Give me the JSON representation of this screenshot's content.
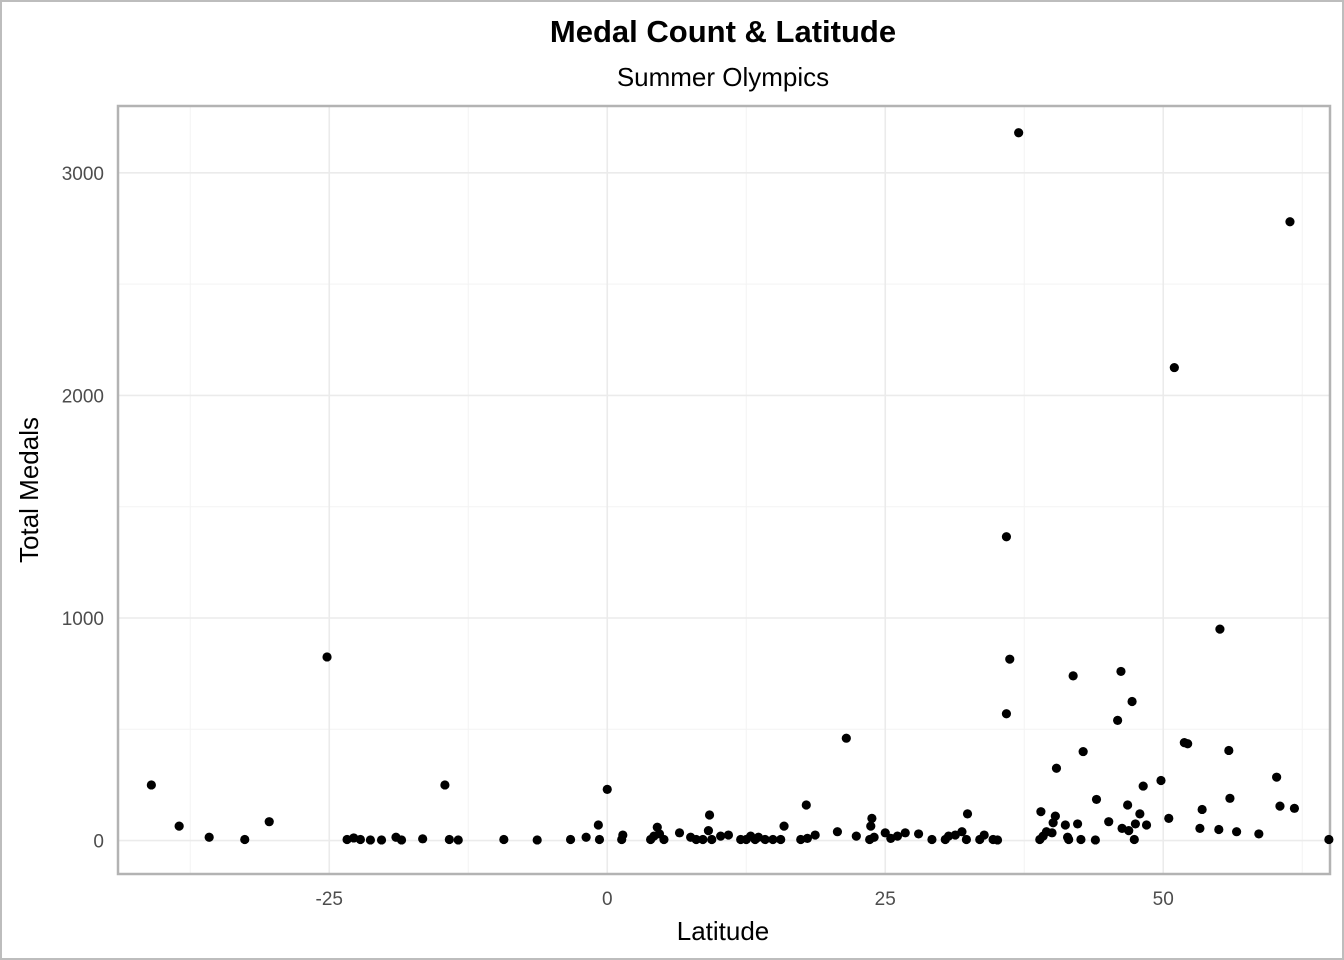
{
  "chart_data": {
    "type": "scatter",
    "title": "Medal Count & Latitude",
    "subtitle": "Summer Olympics",
    "xlabel": "Latitude",
    "ylabel": "Total Medals",
    "xlim": [
      -44,
      65
    ],
    "ylim": [
      -150,
      3300
    ],
    "x_ticks": [
      -25,
      0,
      25,
      50
    ],
    "x_tick_labels": [
      "-25",
      "0",
      "25",
      "50"
    ],
    "y_ticks": [
      0,
      1000,
      2000,
      3000
    ],
    "y_tick_labels": [
      "0",
      "1000",
      "2000",
      "3000"
    ],
    "grid": true,
    "marker_color": "#000000",
    "points": [
      {
        "x": -41,
        "y": 250
      },
      {
        "x": -38.5,
        "y": 65
      },
      {
        "x": -35.8,
        "y": 15
      },
      {
        "x": -32.6,
        "y": 5
      },
      {
        "x": -30.4,
        "y": 85
      },
      {
        "x": -25.2,
        "y": 825
      },
      {
        "x": -23.4,
        "y": 5
      },
      {
        "x": -22.8,
        "y": 12
      },
      {
        "x": -22.2,
        "y": 5
      },
      {
        "x": -21.3,
        "y": 3
      },
      {
        "x": -20.3,
        "y": 3
      },
      {
        "x": -19,
        "y": 15
      },
      {
        "x": -18.5,
        "y": 3
      },
      {
        "x": -16.6,
        "y": 8
      },
      {
        "x": -14.6,
        "y": 250
      },
      {
        "x": -14.2,
        "y": 5
      },
      {
        "x": -13.4,
        "y": 3
      },
      {
        "x": -9.3,
        "y": 5
      },
      {
        "x": -6.3,
        "y": 3
      },
      {
        "x": -3.3,
        "y": 5
      },
      {
        "x": -1.9,
        "y": 15
      },
      {
        "x": -0.8,
        "y": 70
      },
      {
        "x": -0.7,
        "y": 5
      },
      {
        "x": 0,
        "y": 230
      },
      {
        "x": 1.3,
        "y": 5
      },
      {
        "x": 1.4,
        "y": 25
      },
      {
        "x": 3.9,
        "y": 5
      },
      {
        "x": 4.2,
        "y": 20
      },
      {
        "x": 4.5,
        "y": 60
      },
      {
        "x": 4.7,
        "y": 30
      },
      {
        "x": 5.1,
        "y": 5
      },
      {
        "x": 6.5,
        "y": 35
      },
      {
        "x": 7.5,
        "y": 15
      },
      {
        "x": 8,
        "y": 5
      },
      {
        "x": 8.6,
        "y": 5
      },
      {
        "x": 9.1,
        "y": 45
      },
      {
        "x": 9.2,
        "y": 115
      },
      {
        "x": 9.4,
        "y": 5
      },
      {
        "x": 10.2,
        "y": 20
      },
      {
        "x": 10.9,
        "y": 25
      },
      {
        "x": 12,
        "y": 5
      },
      {
        "x": 12.5,
        "y": 5
      },
      {
        "x": 12.9,
        "y": 20
      },
      {
        "x": 13.3,
        "y": 5
      },
      {
        "x": 13.6,
        "y": 15
      },
      {
        "x": 14.2,
        "y": 5
      },
      {
        "x": 14.9,
        "y": 5
      },
      {
        "x": 15.6,
        "y": 5
      },
      {
        "x": 15.9,
        "y": 65
      },
      {
        "x": 17.4,
        "y": 5
      },
      {
        "x": 17.9,
        "y": 160
      },
      {
        "x": 18,
        "y": 10
      },
      {
        "x": 18.7,
        "y": 25
      },
      {
        "x": 20.7,
        "y": 40
      },
      {
        "x": 21.5,
        "y": 460
      },
      {
        "x": 22.4,
        "y": 20
      },
      {
        "x": 23.6,
        "y": 5
      },
      {
        "x": 23.7,
        "y": 65
      },
      {
        "x": 23.8,
        "y": 100
      },
      {
        "x": 24,
        "y": 15
      },
      {
        "x": 25,
        "y": 35
      },
      {
        "x": 25.5,
        "y": 10
      },
      {
        "x": 26.1,
        "y": 20
      },
      {
        "x": 26.8,
        "y": 35
      },
      {
        "x": 28,
        "y": 30
      },
      {
        "x": 29.2,
        "y": 5
      },
      {
        "x": 30.4,
        "y": 5
      },
      {
        "x": 30.7,
        "y": 20
      },
      {
        "x": 31.3,
        "y": 25
      },
      {
        "x": 31.9,
        "y": 40
      },
      {
        "x": 32.3,
        "y": 5
      },
      {
        "x": 32.4,
        "y": 120
      },
      {
        "x": 33.5,
        "y": 5
      },
      {
        "x": 33.9,
        "y": 25
      },
      {
        "x": 34.7,
        "y": 5
      },
      {
        "x": 35.1,
        "y": 3
      },
      {
        "x": 35.9,
        "y": 1365
      },
      {
        "x": 35.9,
        "y": 570
      },
      {
        "x": 36.2,
        "y": 815
      },
      {
        "x": 37,
        "y": 3180
      },
      {
        "x": 38.9,
        "y": 5
      },
      {
        "x": 39,
        "y": 130
      },
      {
        "x": 39.2,
        "y": 20
      },
      {
        "x": 39.5,
        "y": 40
      },
      {
        "x": 40,
        "y": 35
      },
      {
        "x": 40.1,
        "y": 80
      },
      {
        "x": 40.3,
        "y": 110
      },
      {
        "x": 40.4,
        "y": 325
      },
      {
        "x": 41.2,
        "y": 70
      },
      {
        "x": 41.4,
        "y": 15
      },
      {
        "x": 41.5,
        "y": 5
      },
      {
        "x": 41.9,
        "y": 740
      },
      {
        "x": 42.3,
        "y": 75
      },
      {
        "x": 42.6,
        "y": 5
      },
      {
        "x": 42.8,
        "y": 400
      },
      {
        "x": 43.9,
        "y": 3
      },
      {
        "x": 44,
        "y": 185
      },
      {
        "x": 45.1,
        "y": 85
      },
      {
        "x": 45.9,
        "y": 540
      },
      {
        "x": 46.2,
        "y": 760
      },
      {
        "x": 46.3,
        "y": 55
      },
      {
        "x": 46.8,
        "y": 160
      },
      {
        "x": 46.9,
        "y": 45
      },
      {
        "x": 47.2,
        "y": 625
      },
      {
        "x": 47.4,
        "y": 5
      },
      {
        "x": 47.5,
        "y": 75
      },
      {
        "x": 47.9,
        "y": 120
      },
      {
        "x": 48.2,
        "y": 245
      },
      {
        "x": 48.5,
        "y": 70
      },
      {
        "x": 49.8,
        "y": 270
      },
      {
        "x": 50.5,
        "y": 100
      },
      {
        "x": 51,
        "y": 2125
      },
      {
        "x": 51.9,
        "y": 440
      },
      {
        "x": 52.2,
        "y": 435
      },
      {
        "x": 53.3,
        "y": 55
      },
      {
        "x": 53.5,
        "y": 140
      },
      {
        "x": 55,
        "y": 50
      },
      {
        "x": 55.1,
        "y": 950
      },
      {
        "x": 55.9,
        "y": 405
      },
      {
        "x": 56,
        "y": 190
      },
      {
        "x": 56.6,
        "y": 40
      },
      {
        "x": 58.6,
        "y": 30
      },
      {
        "x": 60.2,
        "y": 285
      },
      {
        "x": 60.5,
        "y": 155
      },
      {
        "x": 61.4,
        "y": 2780
      },
      {
        "x": 61.8,
        "y": 145
      },
      {
        "x": 64.9,
        "y": 5
      }
    ]
  }
}
